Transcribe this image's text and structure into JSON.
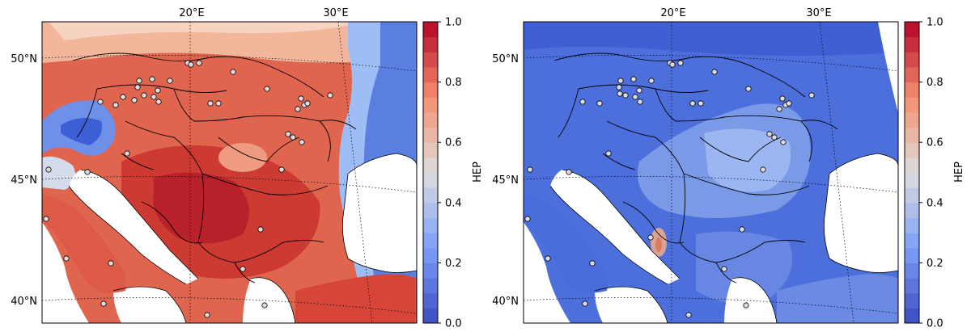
{
  "panels": [
    {
      "id": "left",
      "lat_labels": [
        "50°N",
        "45°N",
        "40°N"
      ],
      "lon_labels": [
        "20°E",
        "30°E"
      ],
      "colorbar": {
        "label": "HEP",
        "ticks": [
          "1.0",
          "0.8",
          "0.6",
          "0.4",
          "0.2",
          "0.0"
        ],
        "range": [
          0,
          1
        ],
        "levels": 20
      }
    },
    {
      "id": "right",
      "lat_labels": [
        "50°N",
        "45°N",
        "40°N"
      ],
      "lon_labels": [
        "20°E",
        "30°E"
      ],
      "colorbar": {
        "label": "HEP",
        "ticks": [
          "1.0",
          "0.8",
          "0.6",
          "0.4",
          "0.2",
          "0.0"
        ],
        "range": [
          0,
          1
        ],
        "levels": 20
      }
    }
  ],
  "colormap": "coolwarm",
  "colors": {
    "sea": "#ffffff",
    "border": "#000000",
    "station_fill": "#dcdcdc",
    "station_stroke": "#000000"
  },
  "dominant_field": {
    "left": "warm (HEP ~0.7-0.95 over land, low HEP in NW Alps and NE corner)",
    "right": "cool (HEP ~0.05-0.3 over land)"
  }
}
